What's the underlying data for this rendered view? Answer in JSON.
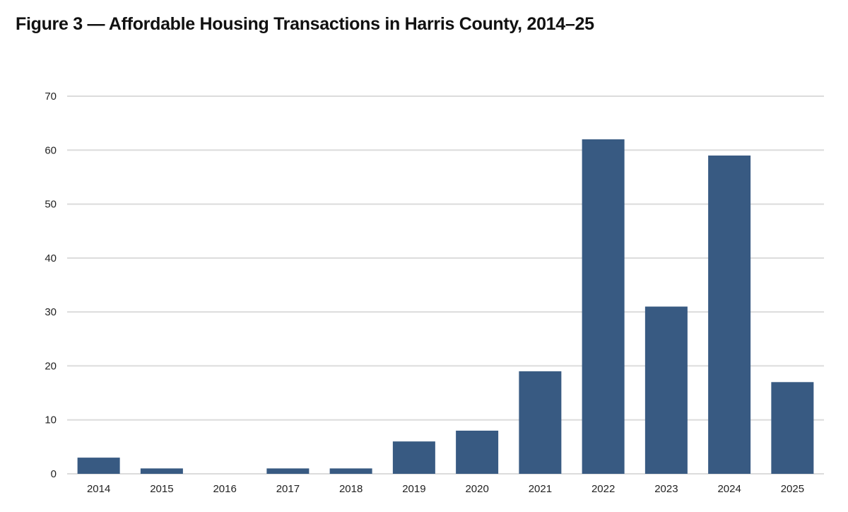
{
  "chart_data": {
    "type": "bar",
    "title": "Figure 3 — Affordable Housing Transactions in Harris County, 2014–25",
    "xlabel": "",
    "ylabel": "",
    "categories": [
      "2014",
      "2015",
      "2016",
      "2017",
      "2018",
      "2019",
      "2020",
      "2021",
      "2022",
      "2023",
      "2024",
      "2025"
    ],
    "values": [
      3,
      1,
      0,
      1,
      1,
      6,
      8,
      19,
      62,
      31,
      59,
      17
    ],
    "ylim": [
      0,
      70
    ],
    "yticks": [
      0,
      10,
      20,
      30,
      40,
      50,
      60,
      70
    ],
    "grid": true,
    "legend": "none",
    "colors": {
      "bar": "#385a82",
      "grid": "#dcdcdc"
    }
  }
}
